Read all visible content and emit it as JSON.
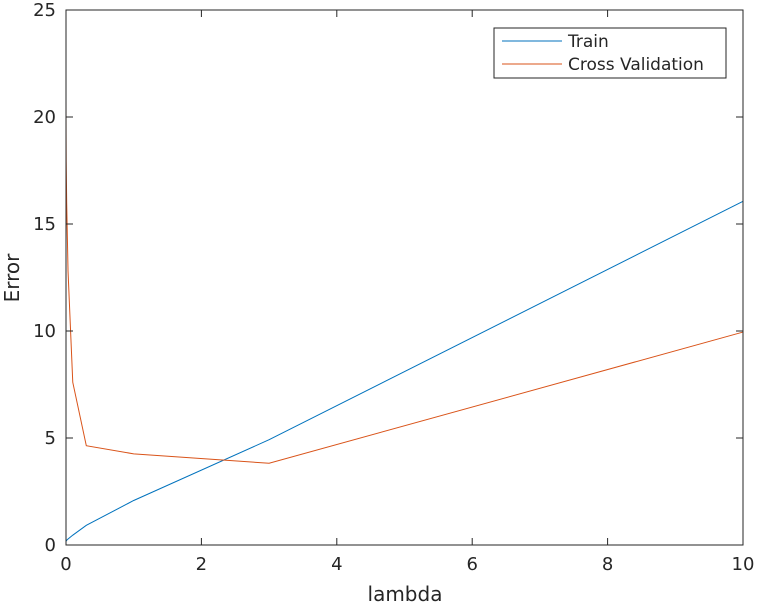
{
  "chart_data": {
    "type": "line",
    "title": "",
    "xlabel": "lambda",
    "ylabel": "Error",
    "xlim": [
      0,
      10
    ],
    "ylim": [
      0,
      25
    ],
    "xticks": [
      "0",
      "2",
      "4",
      "6",
      "8",
      "10"
    ],
    "yticks": [
      "0",
      "5",
      "10",
      "15",
      "20",
      "25"
    ],
    "grid": false,
    "legend_position": "top-right",
    "series": [
      {
        "name": "Train",
        "color": "#0072BD",
        "x": [
          0,
          0.001,
          0.003,
          0.01,
          0.03,
          0.1,
          0.3,
          1,
          3,
          10
        ],
        "y": [
          0.17,
          0.17,
          0.18,
          0.22,
          0.28,
          0.46,
          0.92,
          2.08,
          4.92,
          16.06
        ]
      },
      {
        "name": "Cross Validation",
        "color": "#D95319",
        "x": [
          0,
          0.001,
          0.003,
          0.01,
          0.03,
          0.1,
          0.3,
          1,
          3,
          10
        ],
        "y": [
          20.9,
          19.2,
          17.9,
          16.0,
          12.8,
          7.6,
          4.64,
          4.26,
          3.82,
          9.95
        ]
      }
    ]
  }
}
